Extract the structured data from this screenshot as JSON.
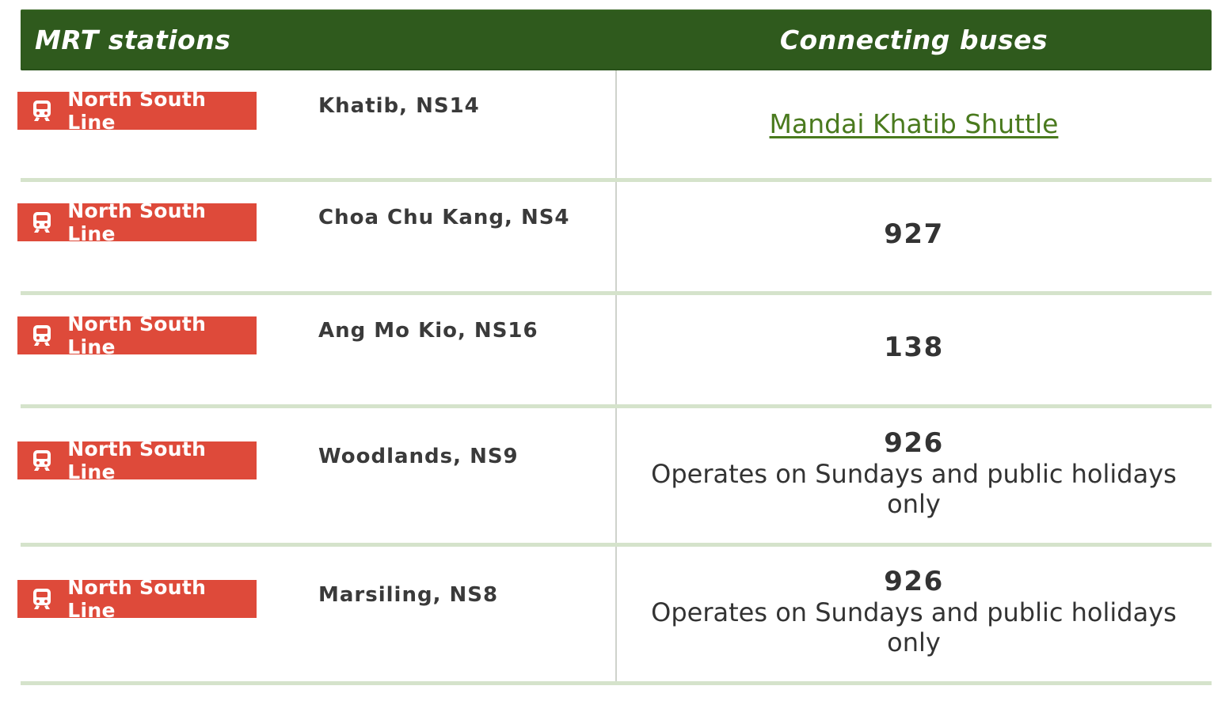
{
  "header": {
    "col_stations": "MRT stations",
    "col_buses": "Connecting buses"
  },
  "colors": {
    "header_bg": "#2f5a1d",
    "badge_bg": "#de4a3a",
    "link": "#4a7a1e",
    "row_divider": "#d5e3cb"
  },
  "rows": [
    {
      "line": "North South Line",
      "line_icon": "train-icon",
      "station": "Khatib, NS14",
      "bus_link": "Mandai Khatib Shuttle"
    },
    {
      "line": "North South Line",
      "line_icon": "train-icon",
      "station": "Choa Chu Kang, NS4",
      "bus_number": "927"
    },
    {
      "line": "North South Line",
      "line_icon": "train-icon",
      "station": "Ang Mo Kio, NS16",
      "bus_number": "138"
    },
    {
      "line": "North South Line",
      "line_icon": "train-icon",
      "station": "Woodlands, NS9",
      "bus_number": "926",
      "bus_note": "Operates on Sundays and public holidays only"
    },
    {
      "line": "North South Line",
      "line_icon": "train-icon",
      "station": "Marsiling, NS8",
      "bus_number": "926",
      "bus_note": "Operates on Sundays and public holidays only"
    }
  ]
}
